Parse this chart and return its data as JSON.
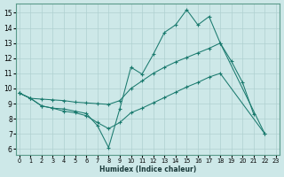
{
  "xlabel": "Humidex (Indice chaleur)",
  "background_color": "#cde8e8",
  "grid_color": "#afd0d0",
  "line_color": "#1a7a6e",
  "x_ticks": [
    0,
    1,
    2,
    3,
    4,
    5,
    6,
    7,
    8,
    9,
    10,
    11,
    12,
    13,
    14,
    15,
    16,
    17,
    18,
    19,
    20,
    21,
    22,
    23
  ],
  "y_ticks": [
    6,
    7,
    8,
    9,
    10,
    11,
    12,
    13,
    14,
    15
  ],
  "xlim": [
    -0.3,
    23.3
  ],
  "ylim": [
    5.6,
    15.6
  ],
  "line1_x": [
    0,
    1,
    2,
    3,
    4,
    5,
    6,
    7,
    8,
    9,
    10,
    11,
    12,
    13,
    14,
    15,
    16,
    17,
    18,
    19,
    20,
    21
  ],
  "line1_y": [
    9.7,
    9.35,
    8.85,
    8.7,
    8.65,
    8.5,
    8.35,
    7.55,
    6.1,
    8.65,
    11.4,
    10.95,
    12.25,
    13.7,
    14.2,
    15.2,
    14.2,
    14.75,
    13.0,
    11.8,
    10.4,
    8.3
  ],
  "line2_x": [
    0,
    1,
    2,
    3,
    4,
    5,
    6,
    7,
    8,
    9,
    10,
    11,
    12,
    13,
    14,
    15,
    16,
    17,
    18,
    22
  ],
  "line2_y": [
    9.7,
    9.35,
    9.3,
    9.25,
    9.2,
    9.1,
    9.05,
    9.0,
    8.95,
    9.2,
    10.0,
    10.5,
    11.0,
    11.4,
    11.75,
    12.05,
    12.35,
    12.65,
    13.0,
    7.0
  ],
  "line3_x": [
    0,
    1,
    2,
    3,
    4,
    5,
    6,
    7,
    8,
    9,
    10,
    11,
    12,
    13,
    14,
    15,
    16,
    17,
    18,
    22
  ],
  "line3_y": [
    9.7,
    9.35,
    8.85,
    8.7,
    8.5,
    8.4,
    8.2,
    7.75,
    7.35,
    7.75,
    8.4,
    8.7,
    9.05,
    9.4,
    9.75,
    10.1,
    10.4,
    10.75,
    11.0,
    7.0
  ]
}
